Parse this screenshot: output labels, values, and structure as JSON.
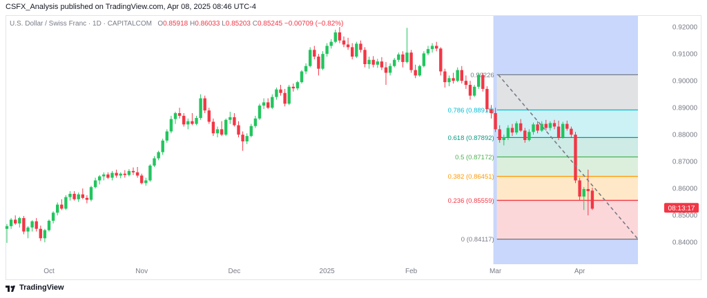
{
  "header": {
    "publisher_line": "CSFX_Analysis published on TradingView.com, Apr 08, 2025 08:46 UTC-4"
  },
  "legend": {
    "symbol": "U.S. Dollar / Swiss Franc · 1D · CAPITALCOM",
    "o_label": "O",
    "o_value": "0.85918",
    "h_label": "H",
    "h_value": "0.86033",
    "l_label": "L",
    "l_value": "0.85203",
    "c_label": "C",
    "c_value": "0.85245",
    "change": "−0.00709 (−0.82%)"
  },
  "footer": {
    "brand": "TradingView"
  },
  "colors": {
    "up": "#22c55e",
    "down": "#f23645",
    "axis_text": "#787b86",
    "shade_blue": "#c8d7fb",
    "price_tag": "#f23645"
  },
  "chart_data": {
    "type": "candlestick",
    "title": "U.S. Dollar / Swiss Franc · 1D · CAPITALCOM",
    "y_ticks": [
      "0.92000",
      "0.91000",
      "0.90000",
      "0.89000",
      "0.88000",
      "0.87000",
      "0.86000",
      "0.85000",
      "0.84000"
    ],
    "y_tick_values": [
      0.92,
      0.91,
      0.9,
      0.89,
      0.88,
      0.87,
      0.86,
      0.85,
      0.84
    ],
    "ylim": [
      0.8316,
      0.9244
    ],
    "x_ticks": [
      "Oct",
      "Nov",
      "Dec",
      "2025",
      "Feb",
      "Mar",
      "Apr"
    ],
    "x_tick_index": [
      10,
      32,
      54,
      76,
      96,
      116,
      136
    ],
    "current_price_tag": "08:13:17",
    "current_price": 0.8528,
    "fibonacci": [
      {
        "label": "0.90226",
        "level": 0.90226
      },
      {
        "label": "0.786 (0.88919)",
        "level": 0.88919
      },
      {
        "label": "0.618 (0.87892)",
        "level": 0.87892
      },
      {
        "label": "0.5 (0.87172)",
        "level": 0.87172
      },
      {
        "label": "0.382 (0.86451)",
        "level": 0.86451
      },
      {
        "label": "0.236 (0.85559)",
        "level": 0.85559
      },
      {
        "label": "0 (0.84117)",
        "level": 0.84117
      }
    ],
    "fib_colors": [
      "#787b86",
      "#00bcd4",
      "#089981",
      "#4caf50",
      "#ff9800",
      "#f23645",
      "#787b86"
    ],
    "fib_fills": [
      "rgba(120,123,134,0.22)",
      "rgba(0,188,212,0.20)",
      "rgba(8,153,129,0.20)",
      "rgba(76,175,80,0.20)",
      "rgba(255,152,0,0.22)",
      "rgba(242,54,69,0.20)"
    ],
    "fib_start_index": 117,
    "trendline": {
      "from_index": 117,
      "from_price": 0.90226,
      "to_index": 150,
      "to_price": 0.84117
    },
    "shade_start_index": 116,
    "shade_end_index": 150,
    "candles": [
      [
        0.845,
        0.8468,
        0.8398,
        0.846
      ],
      [
        0.846,
        0.849,
        0.845,
        0.8484
      ],
      [
        0.8484,
        0.85,
        0.8465,
        0.847
      ],
      [
        0.847,
        0.8495,
        0.8455,
        0.849
      ],
      [
        0.849,
        0.8498,
        0.843,
        0.844
      ],
      [
        0.844,
        0.846,
        0.8415,
        0.8455
      ],
      [
        0.8455,
        0.8482,
        0.844,
        0.8478
      ],
      [
        0.8478,
        0.849,
        0.844,
        0.845
      ],
      [
        0.845,
        0.8462,
        0.8405,
        0.8415
      ],
      [
        0.8415,
        0.845,
        0.84,
        0.8445
      ],
      [
        0.8445,
        0.8485,
        0.844,
        0.848
      ],
      [
        0.848,
        0.8515,
        0.847,
        0.851
      ],
      [
        0.851,
        0.8548,
        0.85,
        0.854
      ],
      [
        0.854,
        0.856,
        0.852,
        0.8525
      ],
      [
        0.8525,
        0.8575,
        0.852,
        0.8568
      ],
      [
        0.8568,
        0.859,
        0.8555,
        0.858
      ],
      [
        0.858,
        0.859,
        0.8555,
        0.856
      ],
      [
        0.856,
        0.8585,
        0.855,
        0.8578
      ],
      [
        0.8578,
        0.86,
        0.856,
        0.8565
      ],
      [
        0.8565,
        0.8575,
        0.8545,
        0.8558
      ],
      [
        0.8558,
        0.861,
        0.8552,
        0.8605
      ],
      [
        0.8605,
        0.864,
        0.86,
        0.863
      ],
      [
        0.863,
        0.865,
        0.8615,
        0.8645
      ],
      [
        0.8645,
        0.866,
        0.863,
        0.8652
      ],
      [
        0.8652,
        0.866,
        0.8635,
        0.864
      ],
      [
        0.864,
        0.8665,
        0.863,
        0.8658
      ],
      [
        0.8658,
        0.867,
        0.864,
        0.8648
      ],
      [
        0.8648,
        0.866,
        0.8638,
        0.8655
      ],
      [
        0.8655,
        0.8668,
        0.864,
        0.865
      ],
      [
        0.865,
        0.8672,
        0.8645,
        0.8665
      ],
      [
        0.8665,
        0.8678,
        0.865,
        0.866
      ],
      [
        0.866,
        0.868,
        0.864,
        0.8648
      ],
      [
        0.8648,
        0.8655,
        0.8615,
        0.862
      ],
      [
        0.862,
        0.864,
        0.861,
        0.863
      ],
      [
        0.863,
        0.869,
        0.8625,
        0.8685
      ],
      [
        0.8685,
        0.872,
        0.868,
        0.8712
      ],
      [
        0.8712,
        0.874,
        0.8705,
        0.8735
      ],
      [
        0.8735,
        0.8785,
        0.8725,
        0.8778
      ],
      [
        0.8778,
        0.882,
        0.877,
        0.8812
      ],
      [
        0.8812,
        0.887,
        0.8805,
        0.8858
      ],
      [
        0.8858,
        0.8885,
        0.884,
        0.888
      ],
      [
        0.888,
        0.89,
        0.886,
        0.887
      ],
      [
        0.887,
        0.888,
        0.883,
        0.8838
      ],
      [
        0.8838,
        0.886,
        0.882,
        0.885
      ],
      [
        0.885,
        0.888,
        0.8835,
        0.884
      ],
      [
        0.884,
        0.887,
        0.8835,
        0.8862
      ],
      [
        0.8862,
        0.895,
        0.8855,
        0.8935
      ],
      [
        0.8935,
        0.8945,
        0.888,
        0.889
      ],
      [
        0.889,
        0.89,
        0.884,
        0.8848
      ],
      [
        0.8848,
        0.886,
        0.8795,
        0.8805
      ],
      [
        0.8805,
        0.883,
        0.879,
        0.882
      ],
      [
        0.882,
        0.885,
        0.8795,
        0.88
      ],
      [
        0.88,
        0.886,
        0.8795,
        0.8855
      ],
      [
        0.8855,
        0.8885,
        0.884,
        0.8865
      ],
      [
        0.8865,
        0.888,
        0.883,
        0.8835
      ],
      [
        0.8835,
        0.885,
        0.879,
        0.88
      ],
      [
        0.88,
        0.8812,
        0.874,
        0.8775
      ],
      [
        0.8775,
        0.8805,
        0.8765,
        0.8795
      ],
      [
        0.8795,
        0.884,
        0.879,
        0.8832
      ],
      [
        0.8832,
        0.887,
        0.8825,
        0.886
      ],
      [
        0.886,
        0.8915,
        0.8855,
        0.8908
      ],
      [
        0.8908,
        0.8935,
        0.8895,
        0.892
      ],
      [
        0.892,
        0.8935,
        0.8895,
        0.89
      ],
      [
        0.89,
        0.895,
        0.8895,
        0.894
      ],
      [
        0.894,
        0.8975,
        0.893,
        0.8968
      ],
      [
        0.8968,
        0.8985,
        0.8945,
        0.8955
      ],
      [
        0.8955,
        0.897,
        0.8905,
        0.8915
      ],
      [
        0.8915,
        0.8985,
        0.891,
        0.8978
      ],
      [
        0.8978,
        0.899,
        0.896,
        0.8972
      ],
      [
        0.8972,
        0.9,
        0.8965,
        0.8995
      ],
      [
        0.8995,
        0.904,
        0.899,
        0.9035
      ],
      [
        0.9035,
        0.9065,
        0.9025,
        0.9055
      ],
      [
        0.9055,
        0.9125,
        0.905,
        0.9115
      ],
      [
        0.9115,
        0.913,
        0.908,
        0.909
      ],
      [
        0.909,
        0.91,
        0.902,
        0.9045
      ],
      [
        0.9045,
        0.911,
        0.904,
        0.91
      ],
      [
        0.91,
        0.914,
        0.909,
        0.913
      ],
      [
        0.913,
        0.9155,
        0.912,
        0.9145
      ],
      [
        0.9145,
        0.919,
        0.914,
        0.918
      ],
      [
        0.918,
        0.92,
        0.914,
        0.915
      ],
      [
        0.915,
        0.9165,
        0.9125,
        0.9135
      ],
      [
        0.9135,
        0.916,
        0.9115,
        0.9125
      ],
      [
        0.9125,
        0.914,
        0.908,
        0.909
      ],
      [
        0.909,
        0.9145,
        0.9085,
        0.9138
      ],
      [
        0.9138,
        0.915,
        0.9105,
        0.9115
      ],
      [
        0.9115,
        0.9125,
        0.905,
        0.9062
      ],
      [
        0.9062,
        0.909,
        0.9045,
        0.9078
      ],
      [
        0.9078,
        0.9092,
        0.905,
        0.906
      ],
      [
        0.906,
        0.9082,
        0.9048,
        0.9072
      ],
      [
        0.9072,
        0.9088,
        0.904,
        0.905
      ],
      [
        0.905,
        0.907,
        0.8985,
        0.903
      ],
      [
        0.903,
        0.9065,
        0.902,
        0.9055
      ],
      [
        0.9055,
        0.9085,
        0.905,
        0.9078
      ],
      [
        0.9078,
        0.9105,
        0.907,
        0.9098
      ],
      [
        0.9098,
        0.911,
        0.905,
        0.907
      ],
      [
        0.907,
        0.9197,
        0.9065,
        0.9105
      ],
      [
        0.9105,
        0.9115,
        0.903,
        0.904
      ],
      [
        0.904,
        0.906,
        0.901,
        0.902
      ],
      [
        0.902,
        0.906,
        0.9015,
        0.9055
      ],
      [
        0.9055,
        0.911,
        0.905,
        0.9102
      ],
      [
        0.9102,
        0.913,
        0.9095,
        0.9118
      ],
      [
        0.9118,
        0.914,
        0.9105,
        0.913
      ],
      [
        0.913,
        0.9145,
        0.911,
        0.912
      ],
      [
        0.912,
        0.9125,
        0.902,
        0.9035
      ],
      [
        0.9035,
        0.9045,
        0.8975,
        0.8995
      ],
      [
        0.8995,
        0.902,
        0.898,
        0.901
      ],
      [
        0.901,
        0.903,
        0.899,
        0.9
      ],
      [
        0.9,
        0.905,
        0.8995,
        0.904
      ],
      [
        0.904,
        0.9055,
        0.899,
        0.9
      ],
      [
        0.9,
        0.902,
        0.897,
        0.8985
      ],
      [
        0.8985,
        0.9,
        0.893,
        0.8945
      ],
      [
        0.8945,
        0.8985,
        0.894,
        0.8978
      ],
      [
        0.8978,
        0.903,
        0.897,
        0.9022
      ],
      [
        0.9022,
        0.903,
        0.896,
        0.897
      ],
      [
        0.897,
        0.898,
        0.8885,
        0.8895
      ],
      [
        0.8895,
        0.891,
        0.886,
        0.888
      ],
      [
        0.888,
        0.89,
        0.881,
        0.882
      ],
      [
        0.882,
        0.8835,
        0.877,
        0.878
      ],
      [
        0.878,
        0.88,
        0.876,
        0.879
      ],
      [
        0.879,
        0.8835,
        0.878,
        0.8825
      ],
      [
        0.8825,
        0.884,
        0.8795,
        0.8808
      ],
      [
        0.8808,
        0.885,
        0.88,
        0.8842
      ],
      [
        0.8842,
        0.8858,
        0.881,
        0.8815
      ],
      [
        0.8815,
        0.8825,
        0.877,
        0.878
      ],
      [
        0.878,
        0.882,
        0.8775,
        0.881
      ],
      [
        0.881,
        0.8845,
        0.88,
        0.8838
      ],
      [
        0.8838,
        0.885,
        0.8805,
        0.8815
      ],
      [
        0.8815,
        0.885,
        0.881,
        0.884
      ],
      [
        0.884,
        0.8855,
        0.8815,
        0.8825
      ],
      [
        0.8825,
        0.885,
        0.8815,
        0.8843
      ],
      [
        0.8843,
        0.8855,
        0.882,
        0.883
      ],
      [
        0.883,
        0.8852,
        0.878,
        0.879
      ],
      [
        0.879,
        0.8848,
        0.8785,
        0.884
      ],
      [
        0.884,
        0.8852,
        0.8815,
        0.8822
      ],
      [
        0.8822,
        0.883,
        0.879,
        0.88
      ],
      [
        0.88,
        0.881,
        0.862,
        0.863
      ],
      [
        0.863,
        0.864,
        0.8555,
        0.857
      ],
      [
        0.857,
        0.8605,
        0.852,
        0.8598
      ],
      [
        0.8598,
        0.867,
        0.85,
        0.859
      ],
      [
        0.8592,
        0.8603,
        0.852,
        0.8525
      ]
    ]
  }
}
